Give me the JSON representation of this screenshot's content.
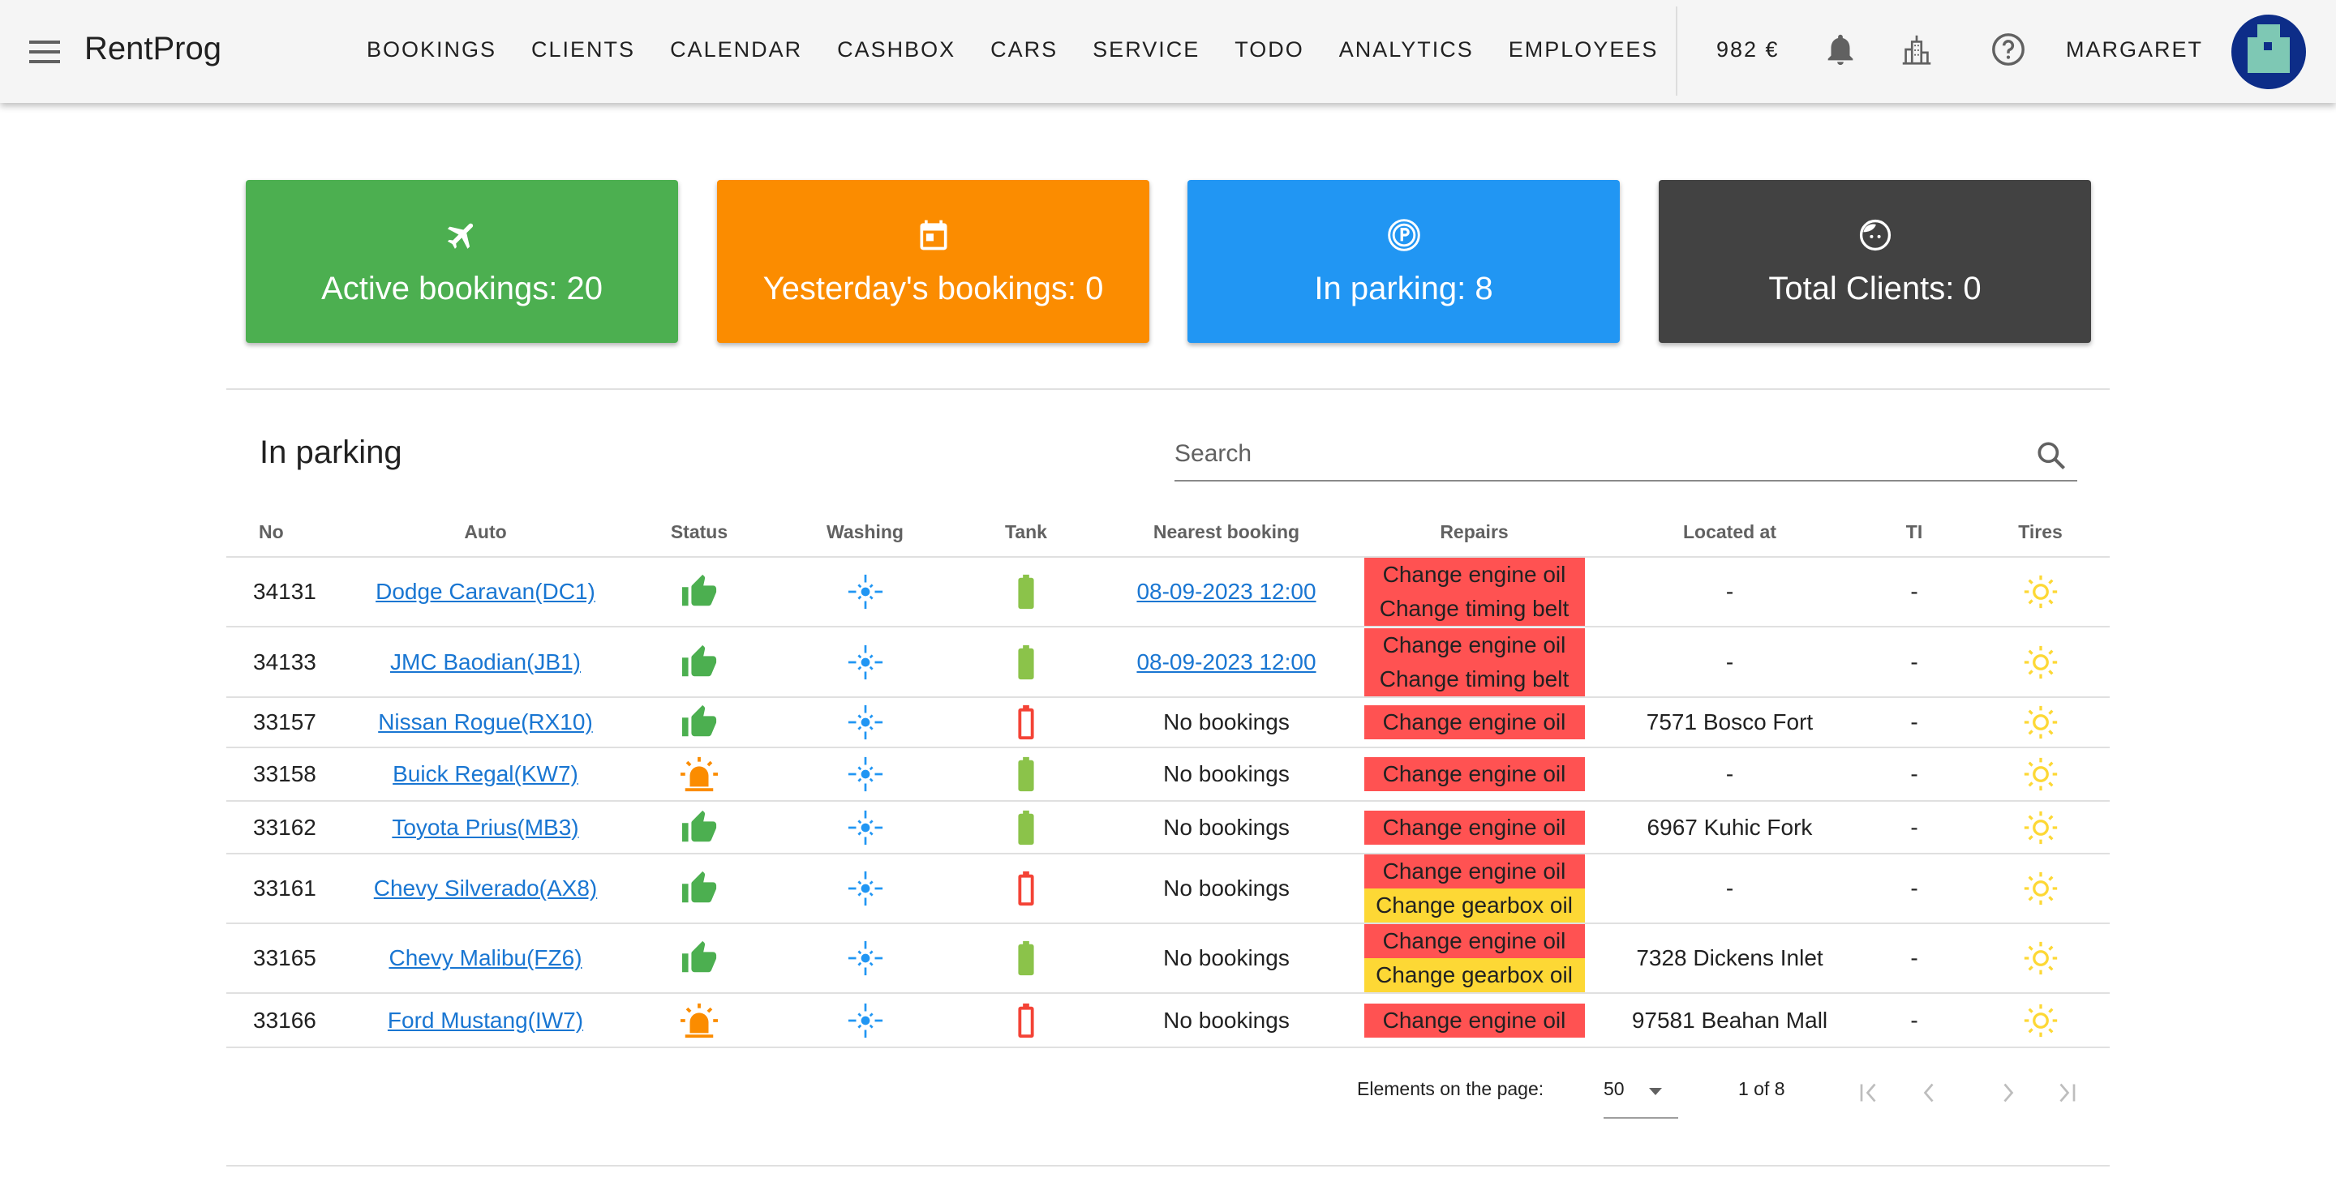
{
  "header": {
    "app_title": "RentProg",
    "nav": [
      "BOOKINGS",
      "CLIENTS",
      "CALENDAR",
      "CASHBOX",
      "CARS",
      "SERVICE",
      "TODO",
      "ANALYTICS",
      "EMPLOYEES"
    ],
    "balance": "982 €",
    "user": "MARGARET"
  },
  "cards": [
    {
      "label": "Active bookings: 20",
      "icon": "airplane-icon",
      "color": "#4caf50"
    },
    {
      "label": "Yesterday's bookings: 0",
      "icon": "calendar-icon",
      "color": "#fb8c00"
    },
    {
      "label": "In parking: 8",
      "icon": "parking-icon",
      "color": "#2196f3"
    },
    {
      "label": "Total Clients: 0",
      "icon": "face-icon",
      "color": "#424242"
    }
  ],
  "section": {
    "title": "In parking",
    "search_placeholder": "Search"
  },
  "table": {
    "columns": [
      "No",
      "Auto",
      "Status",
      "Washing",
      "Tank",
      "Nearest booking",
      "Repairs",
      "Located at",
      "TI",
      "Tires"
    ],
    "rows": [
      {
        "no": "34131",
        "auto": "Dodge Caravan(DC1)",
        "status": "ok",
        "tank": "full",
        "booking": "08-09-2023 12:00",
        "booking_link": true,
        "repairs": [
          {
            "t": "Change engine oil",
            "c": "red"
          },
          {
            "t": "Change timing belt",
            "c": "red"
          }
        ],
        "located": "-",
        "ti": "-"
      },
      {
        "no": "34133",
        "auto": "JMC Baodian(JB1)",
        "status": "ok",
        "tank": "full",
        "booking": "08-09-2023 12:00",
        "booking_link": true,
        "repairs": [
          {
            "t": "Change engine oil",
            "c": "red"
          },
          {
            "t": "Change timing belt",
            "c": "red"
          }
        ],
        "located": "-",
        "ti": "-"
      },
      {
        "no": "33157",
        "auto": "Nissan Rogue(RX10)",
        "status": "ok",
        "tank": "empty",
        "booking": "No bookings",
        "booking_link": false,
        "repairs": [
          {
            "t": "Change engine oil",
            "c": "red"
          }
        ],
        "located": "7571 Bosco Fort",
        "ti": "-"
      },
      {
        "no": "33158",
        "auto": "Buick Regal(KW7)",
        "status": "alert",
        "tank": "full",
        "booking": "No bookings",
        "booking_link": false,
        "repairs": [
          {
            "t": "Change engine oil",
            "c": "red"
          }
        ],
        "located": "-",
        "ti": "-"
      },
      {
        "no": "33162",
        "auto": "Toyota Prius(MB3)",
        "status": "ok",
        "tank": "full",
        "booking": "No bookings",
        "booking_link": false,
        "repairs": [
          {
            "t": "Change engine oil",
            "c": "red"
          }
        ],
        "located": "6967 Kuhic Fork",
        "ti": "-"
      },
      {
        "no": "33161",
        "auto": "Chevy Silverado(AX8)",
        "status": "ok",
        "tank": "empty",
        "booking": "No bookings",
        "booking_link": false,
        "repairs": [
          {
            "t": "Change engine oil",
            "c": "red"
          },
          {
            "t": "Change gearbox oil",
            "c": "yel"
          }
        ],
        "located": "-",
        "ti": "-"
      },
      {
        "no": "33165",
        "auto": "Chevy Malibu(FZ6)",
        "status": "ok",
        "tank": "full",
        "booking": "No bookings",
        "booking_link": false,
        "repairs": [
          {
            "t": "Change engine oil",
            "c": "red"
          },
          {
            "t": "Change gearbox oil",
            "c": "yel"
          }
        ],
        "located": "7328 Dickens Inlet",
        "ti": "-"
      },
      {
        "no": "33166",
        "auto": "Ford Mustang(IW7)",
        "status": "alert",
        "tank": "empty",
        "booking": "No bookings",
        "booking_link": false,
        "repairs": [
          {
            "t": "Change engine oil",
            "c": "red"
          }
        ],
        "located": "97581 Beahan Mall",
        "ti": "-"
      }
    ]
  },
  "pagination": {
    "label": "Elements on the page:",
    "per_page": "50",
    "range": "1 of 8"
  },
  "colors": {
    "ok": "#4caf50",
    "alert": "#fb8c00",
    "wash": "#2196f3",
    "tank_full": "#8bc34a",
    "tank_empty": "#f44336",
    "tires": "#fdd835",
    "link": "#1976d2"
  }
}
